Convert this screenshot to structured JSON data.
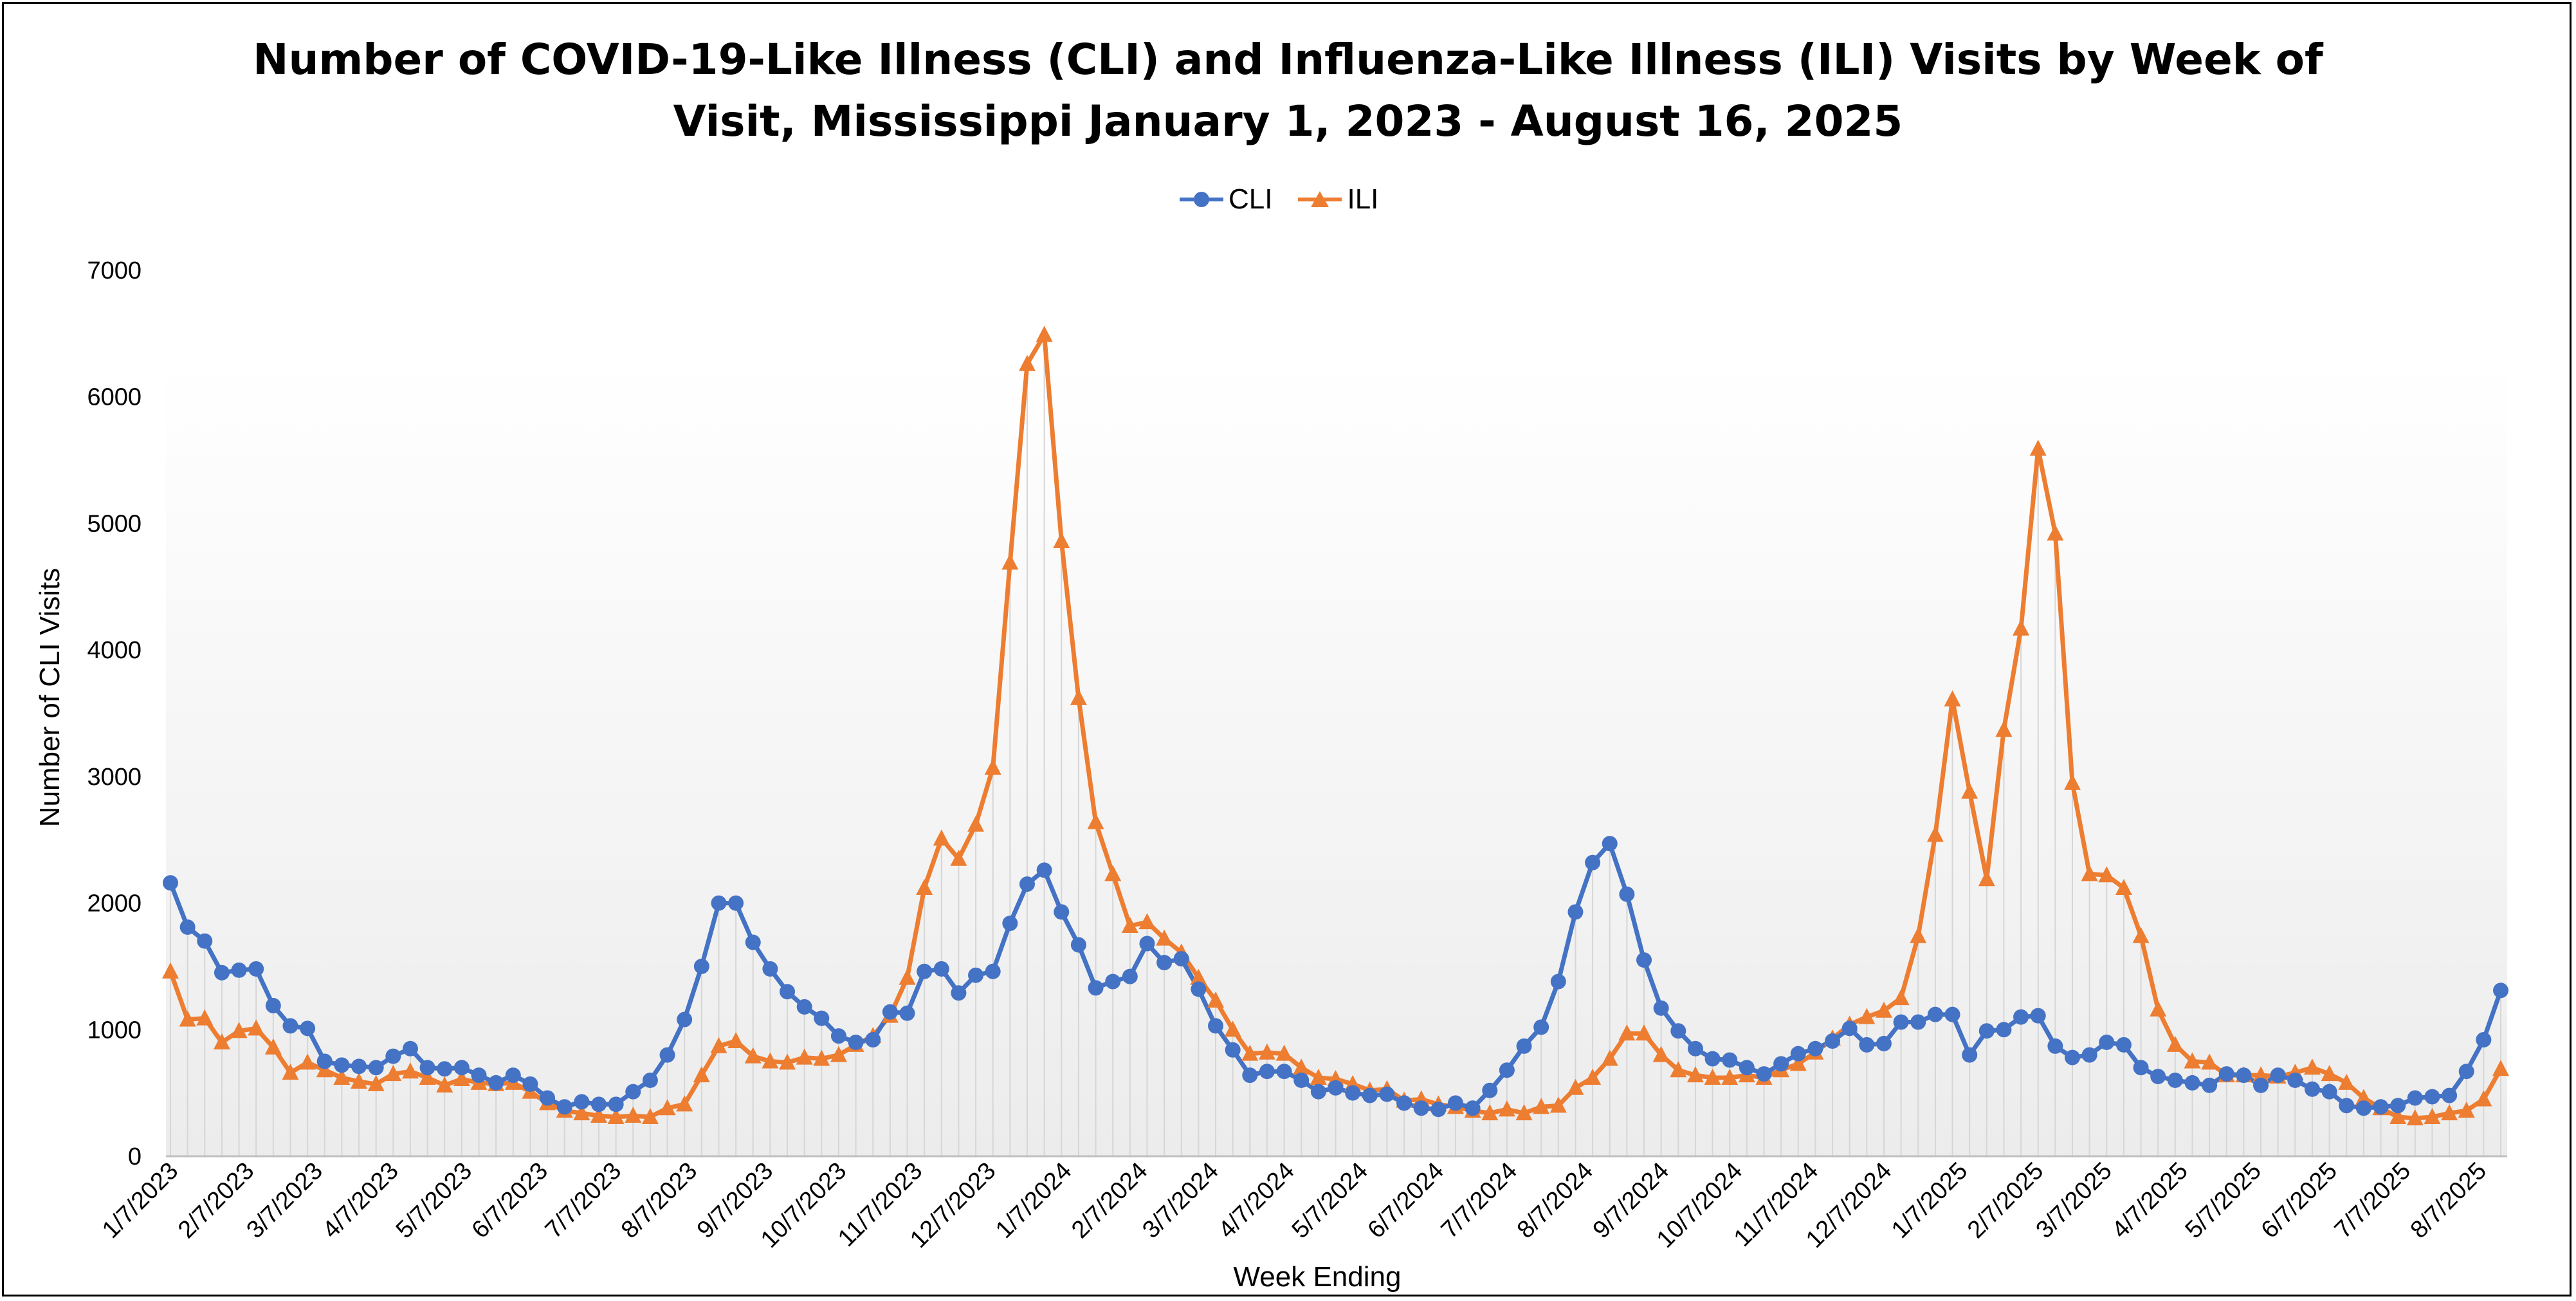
{
  "chart_data": {
    "type": "line",
    "title": "Number of COVID-19-Like Illness (CLI) and Influenza-Like Illness (ILI) Visits by Week of Visit, Mississippi January 1, 2023 - August 16, 2025",
    "title_lines": [
      "Number of COVID-19-Like Illness (CLI) and Influenza-Like Illness (ILI) Visits by Week of",
      "Visit, Mississippi January 1, 2023 - August 16, 2025"
    ],
    "xlabel": "Week Ending",
    "ylabel": "Number of CLI Visits",
    "ylim": [
      0,
      7000
    ],
    "yticks": [
      0,
      1000,
      2000,
      3000,
      4000,
      5000,
      6000,
      7000
    ],
    "xticks": [
      "1/7/2023",
      "2/7/2023",
      "3/7/2023",
      "4/7/2023",
      "5/7/2023",
      "6/7/2023",
      "7/7/2023",
      "8/7/2023",
      "9/7/2023",
      "10/7/2023",
      "11/7/2023",
      "12/7/2023",
      "1/7/2024",
      "2/7/2024",
      "3/7/2024",
      "4/7/2024",
      "5/7/2024",
      "6/7/2024",
      "7/7/2024",
      "8/7/2024",
      "9/7/2024",
      "10/7/2024",
      "11/7/2024",
      "12/7/2024",
      "1/7/2025",
      "2/7/2025",
      "3/7/2025",
      "4/7/2025",
      "5/7/2025",
      "6/7/2025",
      "7/7/2025",
      "8/7/2025"
    ],
    "x_start": "1/7/2023",
    "x_end": "8/16/2025",
    "legend": "top-center",
    "grid": false,
    "series": [
      {
        "name": "CLI",
        "color": "#4472C4",
        "marker": "circle",
        "values": [
          2160,
          1810,
          1700,
          1450,
          1470,
          1480,
          1190,
          1030,
          1010,
          750,
          720,
          710,
          700,
          790,
          850,
          700,
          690,
          700,
          640,
          580,
          640,
          570,
          460,
          390,
          430,
          410,
          410,
          510,
          600,
          800,
          1080,
          1500,
          2000,
          2000,
          1690,
          1480,
          1300,
          1180,
          1090,
          950,
          900,
          920,
          1140,
          1130,
          1460,
          1480,
          1290,
          1430,
          1460,
          1840,
          2150,
          2260,
          1930,
          1670,
          1330,
          1380,
          1420,
          1680,
          1530,
          1560,
          1320,
          1030,
          840,
          640,
          670,
          670,
          600,
          510,
          540,
          500,
          480,
          490,
          420,
          380,
          370,
          420,
          380,
          520,
          680,
          870,
          1020,
          1380,
          1930,
          2320,
          2470,
          2070,
          1550,
          1170,
          990,
          850,
          770,
          760,
          700,
          650,
          730,
          810,
          850,
          910,
          1010,
          880,
          890,
          1060,
          1060,
          1120,
          1120,
          800,
          990,
          1000,
          1100,
          1110,
          870,
          780,
          800,
          900,
          880,
          700,
          630,
          600,
          580,
          560,
          650,
          640,
          560,
          640,
          600,
          530,
          510,
          400,
          380,
          390,
          400,
          460,
          470,
          480,
          670,
          920,
          1310
        ]
      },
      {
        "name": "ILI",
        "color": "#ED7D31",
        "marker": "triangle",
        "values": [
          1460,
          1080,
          1090,
          900,
          990,
          1010,
          860,
          660,
          740,
          680,
          620,
          590,
          570,
          650,
          670,
          620,
          560,
          610,
          580,
          570,
          580,
          510,
          420,
          360,
          340,
          320,
          310,
          320,
          310,
          380,
          410,
          640,
          870,
          910,
          790,
          750,
          740,
          780,
          770,
          800,
          880,
          950,
          1110,
          1410,
          2120,
          2510,
          2350,
          2620,
          3070,
          4690,
          6260,
          6490,
          4860,
          3620,
          2640,
          2230,
          1820,
          1850,
          1720,
          1610,
          1410,
          1230,
          1000,
          810,
          820,
          810,
          700,
          620,
          610,
          570,
          520,
          530,
          440,
          450,
          410,
          390,
          360,
          340,
          370,
          340,
          390,
          400,
          540,
          620,
          770,
          970,
          970,
          800,
          680,
          640,
          620,
          620,
          640,
          620,
          680,
          730,
          820,
          930,
          1040,
          1100,
          1150,
          1250,
          1740,
          2540,
          3610,
          2880,
          2190,
          3370,
          4170,
          5590,
          4920,
          2950,
          2230,
          2220,
          2120,
          1740,
          1160,
          880,
          750,
          740,
          640,
          640,
          640,
          630,
          660,
          700,
          650,
          580,
          460,
          380,
          310,
          300,
          310,
          340,
          360,
          450,
          690
        ]
      }
    ]
  }
}
